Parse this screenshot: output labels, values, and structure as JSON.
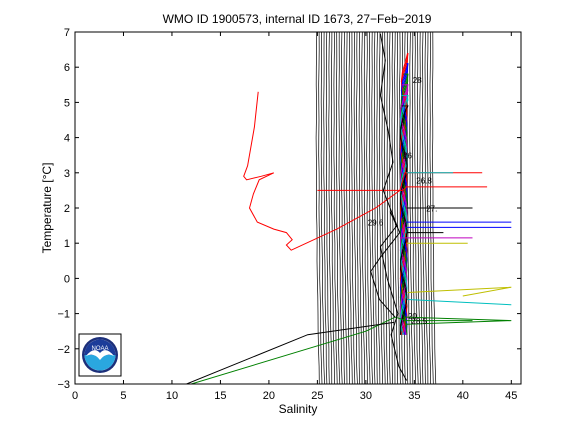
{
  "chart_data": {
    "type": "line",
    "title": "WMO ID 1900573, internal ID 1673, 27−Feb−2019",
    "xlabel": "Salinity",
    "ylabel": "Temperature [°C]",
    "xlim": [
      0,
      46
    ],
    "ylim": [
      -3,
      7
    ],
    "xticks": [
      0,
      5,
      10,
      15,
      20,
      25,
      30,
      35,
      40,
      45
    ],
    "yticks": [
      -3,
      -2,
      -1,
      0,
      1,
      2,
      3,
      4,
      5,
      6,
      7
    ],
    "grid": false,
    "density_contours": {
      "color": "#000000",
      "salinity_range": [
        25,
        37
      ]
    },
    "series": [
      {
        "color": "#ff0000",
        "points": [
          [
            18.9,
            5.3
          ],
          [
            18.5,
            4.3
          ],
          [
            17.8,
            3.2
          ],
          [
            17.4,
            2.9
          ],
          [
            17.7,
            2.8
          ],
          [
            19.2,
            2.9
          ],
          [
            20.5,
            3.0
          ],
          [
            19.0,
            2.8
          ],
          [
            18.4,
            2.4
          ],
          [
            18.0,
            2.0
          ],
          [
            18.8,
            1.6
          ],
          [
            20.5,
            1.4
          ],
          [
            21.8,
            1.3
          ],
          [
            22.4,
            1.1
          ],
          [
            21.8,
            0.95
          ],
          [
            22.3,
            0.8
          ],
          [
            27,
            1.4
          ],
          [
            31,
            2.0
          ],
          [
            33.5,
            2.5
          ],
          [
            34,
            3.0
          ],
          [
            42,
            3.0
          ]
        ]
      },
      {
        "color": "#ff0000",
        "points": [
          [
            25,
            2.5
          ],
          [
            33.8,
            2.5
          ],
          [
            34.2,
            2.6
          ],
          [
            42.5,
            2.6
          ]
        ]
      },
      {
        "color": "#00bfbf",
        "points": [
          [
            34.2,
            3.0
          ],
          [
            39,
            3.0
          ]
        ]
      },
      {
        "color": "#0000ff",
        "points": [
          [
            34.2,
            1.6
          ],
          [
            45,
            1.6
          ]
        ]
      },
      {
        "color": "#0000ff",
        "points": [
          [
            34.2,
            1.45
          ],
          [
            45,
            1.45
          ]
        ]
      },
      {
        "color": "#bf00bf",
        "points": [
          [
            33.5,
            1.15
          ],
          [
            41,
            1.15
          ]
        ]
      },
      {
        "color": "#bfbf00",
        "points": [
          [
            34.2,
            1.0
          ],
          [
            40.5,
            1.0
          ]
        ]
      },
      {
        "color": "#bfbf00",
        "points": [
          [
            34.3,
            -0.4
          ],
          [
            45,
            -0.25
          ],
          [
            40,
            -0.5
          ]
        ]
      },
      {
        "color": "#00bfbf",
        "points": [
          [
            34.3,
            -0.6
          ],
          [
            45,
            -0.75
          ]
        ]
      },
      {
        "color": "#008000",
        "points": [
          [
            34,
            -1.1
          ],
          [
            45,
            -1.2
          ],
          [
            34.2,
            -1.3
          ]
        ]
      },
      {
        "color": "#008000",
        "points": [
          [
            12,
            -3.0
          ],
          [
            30,
            -1.5
          ],
          [
            33,
            -1.1
          ],
          [
            34.2,
            -1.2
          ],
          [
            41,
            -1.2
          ]
        ]
      },
      {
        "color": "#000000",
        "points": [
          [
            32.9,
            -1.25
          ],
          [
            24,
            -1.6
          ],
          [
            11.5,
            -3.0
          ]
        ]
      },
      {
        "color": "#000000",
        "points": [
          [
            34.2,
            2.0
          ],
          [
            41,
            2.0
          ]
        ]
      },
      {
        "color": "#000000",
        "points": [
          [
            34.2,
            1.3
          ],
          [
            38,
            1.3
          ]
        ]
      },
      {
        "color": "#000000",
        "points": [
          [
            31.5,
            6.95
          ],
          [
            32,
            6.2
          ],
          [
            31.5,
            5.2
          ],
          [
            32.3,
            4.2
          ],
          [
            32.8,
            3.3
          ],
          [
            31.8,
            2.5
          ],
          [
            33.2,
            1.5
          ],
          [
            31.5,
            0.9
          ],
          [
            32.2,
            0.0
          ],
          [
            33.3,
            -1.0
          ],
          [
            32.6,
            -1.6
          ],
          [
            33.4,
            -2.5
          ],
          [
            34.2,
            -2.9
          ]
        ]
      },
      {
        "color": "#000000",
        "points": [
          [
            32.5,
            1.9
          ],
          [
            33.5,
            1.3
          ],
          [
            31.5,
            0.6
          ],
          [
            30.5,
            0.2
          ],
          [
            31.4,
            -0.6
          ],
          [
            33.0,
            -1.1
          ]
        ]
      }
    ],
    "annotations": [
      {
        "text": "28",
        "x": 35.3,
        "y": 5.55
      },
      {
        "text": "26",
        "x": 34.3,
        "y": 3.4
      },
      {
        "text": "26.8",
        "x": 36.0,
        "y": 2.7
      },
      {
        "text": "29.6",
        "x": 31.0,
        "y": 1.5
      },
      {
        "text": "27.",
        "x": 36.8,
        "y": 1.9
      },
      {
        "text": "20",
        "x": 34.8,
        "y": -1.15
      },
      {
        "text": "28.5",
        "x": 35.5,
        "y": -1.3
      }
    ]
  },
  "logo": {
    "text": "NOAA",
    "colors": {
      "ring": "#1c2f7a",
      "top": "#1c3c99",
      "bottom": "#2aa7df",
      "bird": "#ffffff"
    }
  }
}
